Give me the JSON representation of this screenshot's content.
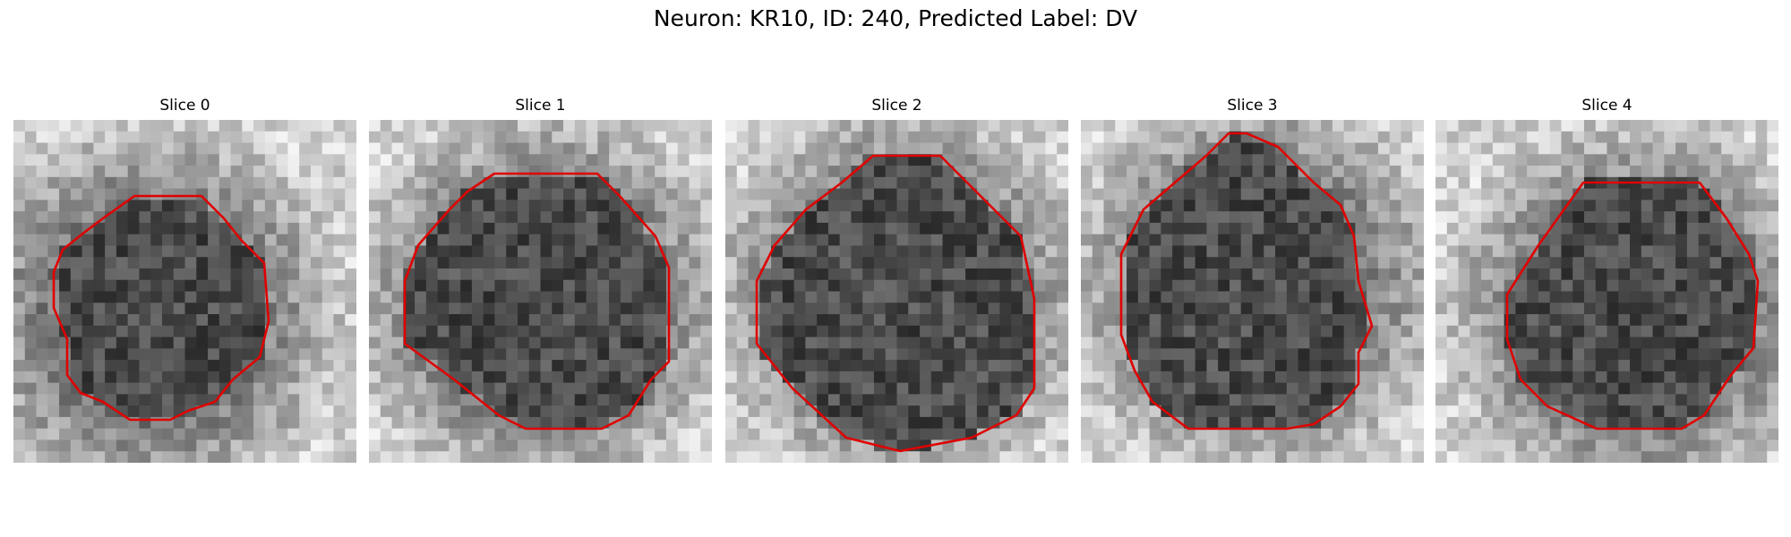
{
  "figure": {
    "title": "Neuron: KR10, ID: 240, Predicted Label: DV",
    "contour_color": "#e00000",
    "cmap": "gray"
  },
  "panels": [
    {
      "title": "Slice 0"
    },
    {
      "title": "Slice 1"
    },
    {
      "title": "Slice 2"
    },
    {
      "title": "Slice 3"
    },
    {
      "title": "Slice 4"
    }
  ]
}
